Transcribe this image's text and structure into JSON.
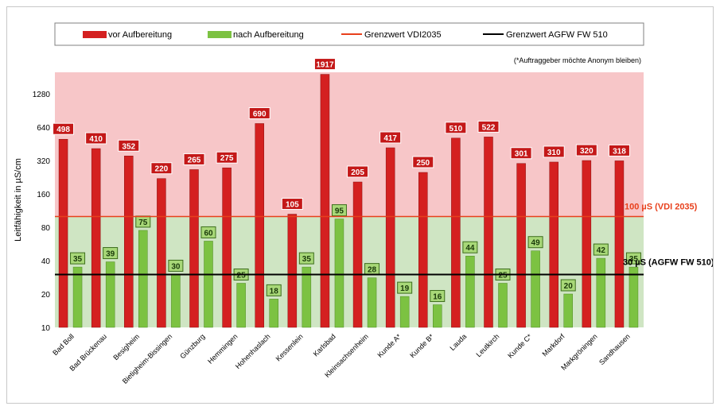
{
  "chart_data": {
    "type": "bar",
    "title": "",
    "note": "(*Auftraggeber möchte Anonym bleiben)",
    "ylabel": "Leitfähigkeit in µS/cm",
    "xlabel": "",
    "y_scale": "log2",
    "ylim": [
      10,
      2000
    ],
    "y_ticks": [
      10,
      20,
      40,
      80,
      160,
      320,
      640,
      1280
    ],
    "grid": false,
    "legend_position": "top",
    "categories": [
      "Bad Boll",
      "Bad Brückenau",
      "Besigheim",
      "Bietigheim-Bissingen",
      "Günzburg",
      "Hemmingen",
      "Hohenhaslach",
      "Kessenlein",
      "Karlsbad",
      "Kleinsachsenheim",
      "Kunde A*",
      "Kunde B*",
      "Lauda",
      "Leutkirch",
      "Kunde C*",
      "Markdorf",
      "Markgröningen",
      "Sandhausen"
    ],
    "series": [
      {
        "name": "vor Aufbereitung",
        "color": "#d42020",
        "values": [
          498,
          410,
          352,
          220,
          265,
          275,
          690,
          105,
          1917,
          205,
          417,
          250,
          510,
          522,
          301,
          310,
          320,
          318
        ]
      },
      {
        "name": "nach Aufbereitung",
        "color": "#7cc242",
        "values": [
          35,
          39,
          75,
          30,
          60,
          25,
          18,
          35,
          95,
          28,
          19,
          16,
          44,
          25,
          49,
          20,
          42,
          35
        ]
      }
    ],
    "reference_lines": [
      {
        "name": "Grenzwert VDI2035",
        "value": 100,
        "color": "#e8401c",
        "label": "100 µS (VDI 2035)"
      },
      {
        "name": "Grenzwert AGFW FW 510",
        "value": 30,
        "color": "#000000",
        "label": "30 µS (AGFW FW 510)"
      }
    ],
    "zones": {
      "above_color": "#f7c6c8",
      "below_color": "#cfe5c3"
    }
  }
}
